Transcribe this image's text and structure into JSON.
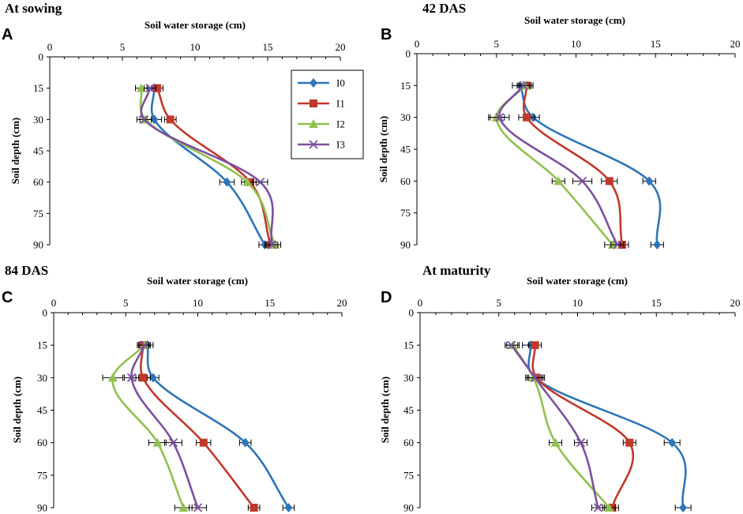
{
  "chart_data": [
    {
      "type": "line",
      "panel": "A",
      "title": "At sowing",
      "xlabel": "Soil water storage (cm)",
      "ylabel": "Soil depth (cm)",
      "xlim": [
        0,
        20
      ],
      "ylim": [
        0,
        90
      ],
      "xticks": [
        0,
        5,
        10,
        15,
        20
      ],
      "yticks": [
        0,
        15,
        30,
        45,
        60,
        75,
        90
      ],
      "depths": [
        15,
        30,
        60,
        90
      ],
      "legend": "inside-right",
      "series": [
        {
          "name": "I0",
          "values": [
            7.2,
            7.2,
            12.2,
            14.8
          ],
          "errors": [
            0.4,
            0.5,
            0.5,
            0.4
          ]
        },
        {
          "name": "I1",
          "values": [
            7.4,
            8.3,
            13.8,
            15.2
          ],
          "errors": [
            0.4,
            0.4,
            0.4,
            0.4
          ]
        },
        {
          "name": "I2",
          "values": [
            6.3,
            6.6,
            13.6,
            15.5
          ],
          "errors": [
            0.4,
            0.4,
            0.4,
            0.4
          ]
        },
        {
          "name": "I3",
          "values": [
            6.9,
            6.5,
            14.5,
            15.3
          ],
          "errors": [
            0.4,
            0.5,
            0.5,
            0.4
          ]
        }
      ]
    },
    {
      "type": "line",
      "panel": "B",
      "title": "42 DAS",
      "xlabel": "Soil water storage (cm)",
      "ylabel": "Soil depth (cm)",
      "xlim": [
        0,
        20
      ],
      "ylim": [
        0,
        90
      ],
      "xticks": [
        0,
        5,
        10,
        15,
        20
      ],
      "yticks": [
        0,
        15,
        30,
        45,
        60,
        75,
        90
      ],
      "depths": [
        15,
        30,
        60,
        90
      ],
      "series": [
        {
          "name": "I0",
          "values": [
            6.5,
            7.3,
            14.6,
            15.1
          ],
          "errors": [
            0.5,
            0.4,
            0.4,
            0.4
          ]
        },
        {
          "name": "I1",
          "values": [
            6.9,
            6.9,
            12.1,
            12.9
          ],
          "errors": [
            0.4,
            0.5,
            0.5,
            0.4
          ]
        },
        {
          "name": "I2",
          "values": [
            6.8,
            5.0,
            8.9,
            12.3
          ],
          "errors": [
            0.4,
            0.5,
            0.4,
            0.5
          ]
        },
        {
          "name": "I3",
          "values": [
            6.7,
            5.2,
            10.4,
            12.6
          ],
          "errors": [
            0.4,
            0.6,
            0.6,
            0.4
          ]
        }
      ]
    },
    {
      "type": "line",
      "panel": "C",
      "title": "84 DAS",
      "xlabel": "Soil water storage (cm)",
      "ylabel": "Soil depth (cm)",
      "xlim": [
        0,
        20
      ],
      "ylim": [
        0,
        90
      ],
      "xticks": [
        0,
        5,
        10,
        15,
        20
      ],
      "yticks": [
        0,
        15,
        30,
        45,
        60,
        75,
        90
      ],
      "depths": [
        15,
        30,
        60,
        90
      ],
      "series": [
        {
          "name": "I0",
          "values": [
            6.5,
            6.9,
            13.3,
            16.3
          ],
          "errors": [
            0.4,
            0.4,
            0.4,
            0.4
          ]
        },
        {
          "name": "I1",
          "values": [
            6.2,
            6.2,
            10.4,
            13.9
          ],
          "errors": [
            0.4,
            0.5,
            0.5,
            0.4
          ]
        },
        {
          "name": "I2",
          "values": [
            6.3,
            4.1,
            7.2,
            9.0
          ],
          "errors": [
            0.4,
            0.7,
            0.6,
            0.6
          ]
        },
        {
          "name": "I3",
          "values": [
            6.3,
            5.4,
            8.3,
            10.0
          ],
          "errors": [
            0.4,
            0.5,
            0.6,
            0.6
          ]
        }
      ]
    },
    {
      "type": "line",
      "panel": "D",
      "title": "At maturity",
      "xlabel": "Soil water storage (cm)",
      "ylabel": "Soil depth (cm)",
      "xlim": [
        0,
        20
      ],
      "ylim": [
        0,
        90
      ],
      "xticks": [
        0,
        5,
        10,
        15,
        20
      ],
      "yticks": [
        0,
        15,
        30,
        45,
        60,
        75,
        90
      ],
      "depths": [
        15,
        30,
        60,
        90
      ],
      "series": [
        {
          "name": "I0",
          "values": [
            7.0,
            7.3,
            16.0,
            16.7
          ],
          "errors": [
            0.5,
            0.5,
            0.5,
            0.5
          ]
        },
        {
          "name": "I1",
          "values": [
            7.3,
            7.4,
            13.3,
            12.2
          ],
          "errors": [
            0.4,
            0.5,
            0.4,
            0.4
          ]
        },
        {
          "name": "I2",
          "values": [
            5.9,
            7.2,
            8.6,
            12.0
          ],
          "errors": [
            0.4,
            0.5,
            0.4,
            0.4
          ]
        },
        {
          "name": "I3",
          "values": [
            5.8,
            7.3,
            10.2,
            11.3
          ],
          "errors": [
            0.4,
            0.5,
            0.4,
            0.4
          ]
        }
      ]
    }
  ],
  "series_style": [
    {
      "name": "I0",
      "color": "#2e75b6",
      "marker": "diamond"
    },
    {
      "name": "I1",
      "color": "#c0392b",
      "marker": "square"
    },
    {
      "name": "I2",
      "color": "#92c050",
      "marker": "triangle"
    },
    {
      "name": "I3",
      "color": "#7c50a0",
      "marker": "x"
    }
  ]
}
